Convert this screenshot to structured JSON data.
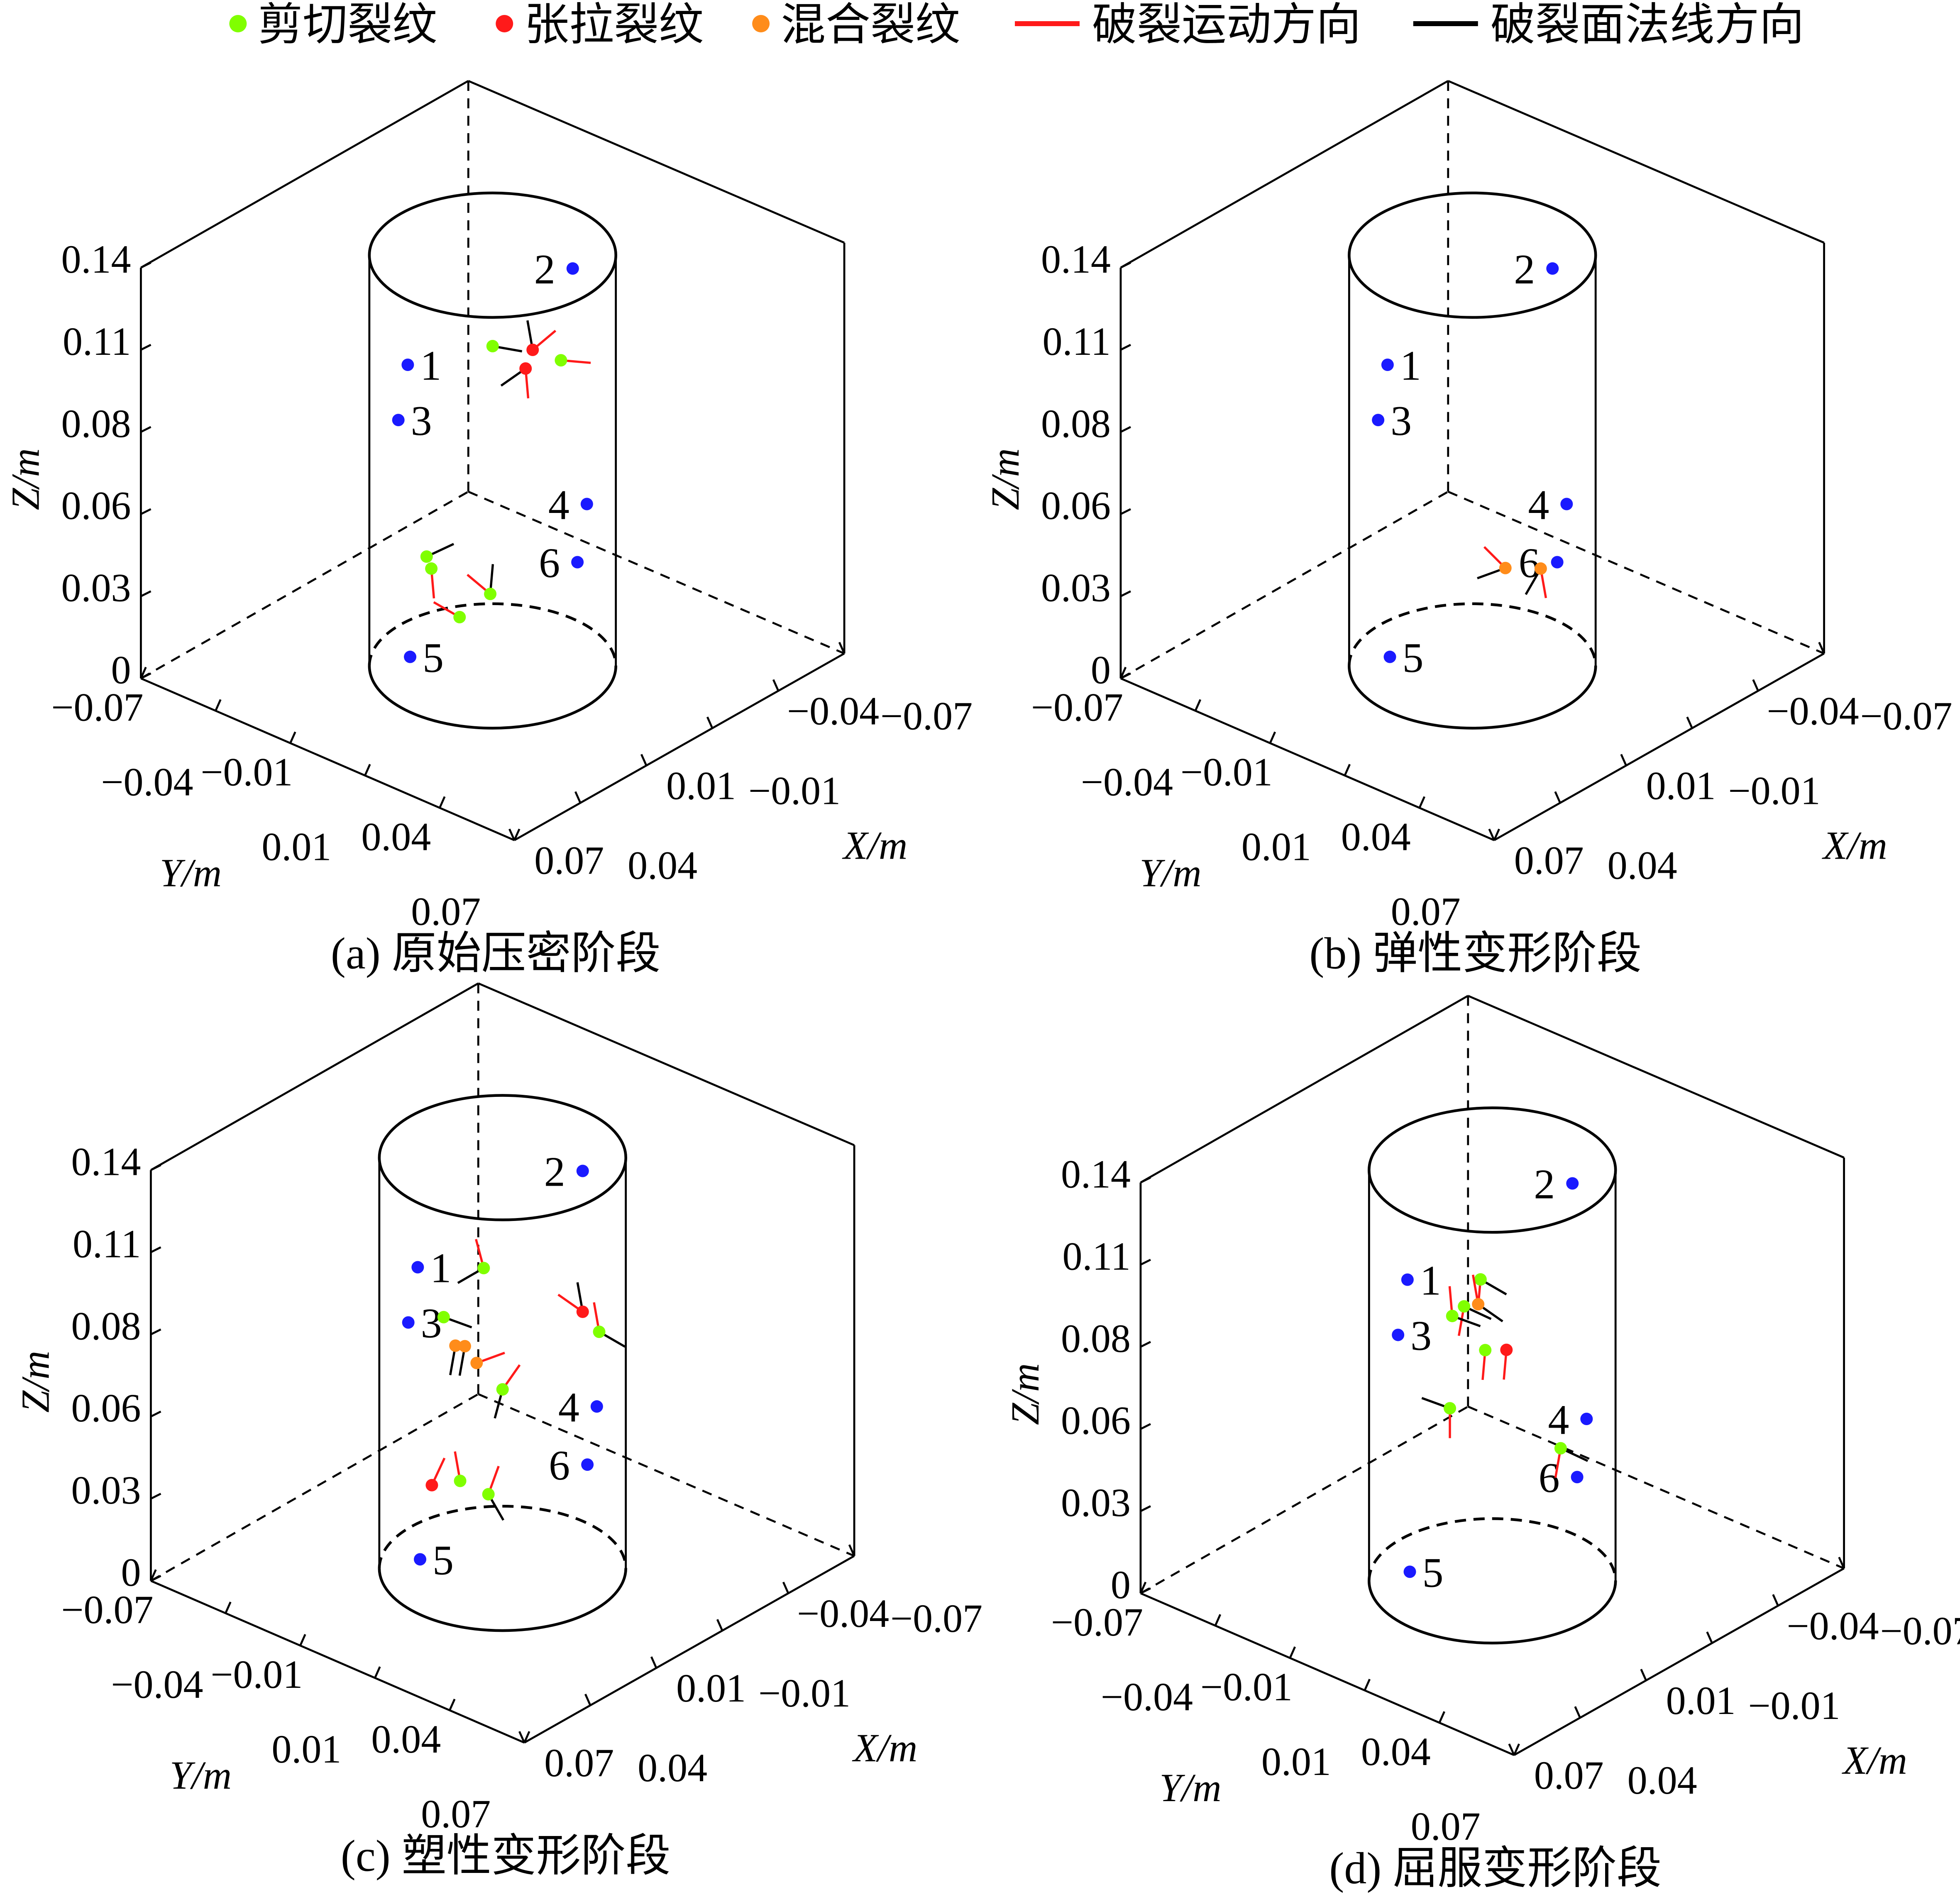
{
  "legend": [
    {
      "label": "剪切裂纹",
      "kind": "dot",
      "color": "#80ff00"
    },
    {
      "label": "张拉裂纹",
      "kind": "dot",
      "color": "#ff1a1a"
    },
    {
      "label": "混合裂纹",
      "kind": "dot",
      "color": "#ff8c1a"
    },
    {
      "label": "破裂运动方向",
      "kind": "line",
      "color": "#ff1a1a"
    },
    {
      "label": "破裂面法线方向",
      "kind": "line",
      "color": "#000000"
    }
  ],
  "colors": {
    "shear": "#80ff00",
    "tensile": "#ff1a1a",
    "mixed": "#ff8c1a",
    "sensor": "#1a1aff",
    "motion": "#ff1a1a",
    "normal": "#000000"
  },
  "chart_data": [
    {
      "type": "scatter3d",
      "caption": "(a)  原始压密阶段",
      "xlabel": "X/m",
      "ylabel": "Y/m",
      "zlabel": "Z/m",
      "xticks": [
        "0.07",
        "0.04",
        "0.01",
        "−0.01",
        "−0.04",
        "−0.07"
      ],
      "yticks": [
        "−0.07",
        "−0.04",
        "−0.01",
        "0.01",
        "0.04",
        "0.07"
      ],
      "zticks": [
        "0",
        "0.03",
        "0.06",
        "0.08",
        "0.11",
        "0.14"
      ],
      "xlim": [
        -0.07,
        0.07
      ],
      "ylim": [
        -0.07,
        0.07
      ],
      "zlim": [
        0,
        0.14
      ],
      "sensors": [
        {
          "label": "1",
          "x": 0.036,
          "y": 0,
          "z": 0.119
        },
        {
          "label": "2",
          "x": -0.034,
          "y": 0,
          "z": 0.12
        },
        {
          "label": "3",
          "x": 0.04,
          "y": 0,
          "z": 0.102
        },
        {
          "label": "4",
          "x": -0.04,
          "y": 0,
          "z": 0.037
        },
        {
          "label": "5",
          "x": 0.035,
          "y": 0,
          "z": 0.019
        },
        {
          "label": "6",
          "x": -0.036,
          "y": 0,
          "z": 0.019
        }
      ],
      "cracks": [
        {
          "type": "shear",
          "x": 0.0,
          "y": 0,
          "z": 0.109,
          "motion_deg": null,
          "normal_deg": -10
        },
        {
          "type": "tensile",
          "x": -0.017,
          "y": 0,
          "z": 0.1,
          "motion_deg": 40,
          "normal_deg": 100
        },
        {
          "type": "tensile",
          "x": -0.014,
          "y": 0,
          "z": 0.095,
          "motion_deg": -85,
          "normal_deg": 215
        },
        {
          "type": "shear",
          "x": -0.029,
          "y": 0,
          "z": 0.091,
          "motion_deg": -5,
          "normal_deg": null
        },
        {
          "type": "shear",
          "x": 0.028,
          "y": 0,
          "z": 0.05,
          "motion_deg": null,
          "normal_deg": 25
        },
        {
          "type": "shear",
          "x": 0.026,
          "y": 0,
          "z": 0.045,
          "motion_deg": -85,
          "normal_deg": null
        },
        {
          "type": "shear",
          "x": 0.014,
          "y": 0,
          "z": 0.023,
          "motion_deg": 150,
          "normal_deg": null
        },
        {
          "type": "shear",
          "x": 0.001,
          "y": 0,
          "z": 0.025,
          "motion_deg": 140,
          "normal_deg": 85
        }
      ]
    },
    {
      "type": "scatter3d",
      "caption": "(b)  弹性变形阶段",
      "xlabel": "X/m",
      "ylabel": "Y/m",
      "zlabel": "Z/m",
      "xticks": [
        "0.07",
        "0.04",
        "0.01",
        "−0.01",
        "−0.04",
        "−0.07"
      ],
      "yticks": [
        "−0.07",
        "−0.04",
        "−0.01",
        "0.01",
        "0.04",
        "0.07"
      ],
      "zticks": [
        "0",
        "0.03",
        "0.06",
        "0.08",
        "0.11",
        "0.14"
      ],
      "xlim": [
        -0.07,
        0.07
      ],
      "ylim": [
        -0.07,
        0.07
      ],
      "zlim": [
        0,
        0.14
      ],
      "sensors": [
        {
          "label": "1",
          "x": 0.036,
          "y": 0,
          "z": 0.119
        },
        {
          "label": "2",
          "x": -0.034,
          "y": 0,
          "z": 0.12
        },
        {
          "label": "3",
          "x": 0.04,
          "y": 0,
          "z": 0.102
        },
        {
          "label": "4",
          "x": -0.04,
          "y": 0,
          "z": 0.037
        },
        {
          "label": "5",
          "x": 0.035,
          "y": 0,
          "z": 0.019
        },
        {
          "label": "6",
          "x": -0.036,
          "y": 0,
          "z": 0.019
        }
      ],
      "cracks": [
        {
          "type": "mixed",
          "x": -0.014,
          "y": 0,
          "z": 0.027,
          "motion_deg": 135,
          "normal_deg": 200
        },
        {
          "type": "mixed",
          "x": -0.029,
          "y": 0,
          "z": 0.02,
          "motion_deg": -80,
          "normal_deg": 240
        }
      ]
    },
    {
      "type": "scatter3d",
      "caption": "(c)  塑性变形阶段",
      "xlabel": "X/m",
      "ylabel": "Y/m",
      "zlabel": "Z/m",
      "xticks": [
        "0.07",
        "0.04",
        "0.01",
        "−0.01",
        "−0.04",
        "−0.07"
      ],
      "yticks": [
        "−0.07",
        "−0.04",
        "−0.01",
        "0.01",
        "0.04",
        "0.07"
      ],
      "zticks": [
        "0",
        "0.03",
        "0.06",
        "0.08",
        "0.11",
        "0.14"
      ],
      "xlim": [
        -0.07,
        0.07
      ],
      "ylim": [
        -0.07,
        0.07
      ],
      "zlim": [
        0,
        0.14
      ],
      "sensors": [
        {
          "label": "1",
          "x": 0.036,
          "y": 0,
          "z": 0.119
        },
        {
          "label": "2",
          "x": -0.034,
          "y": 0,
          "z": 0.12
        },
        {
          "label": "3",
          "x": 0.04,
          "y": 0,
          "z": 0.102
        },
        {
          "label": "4",
          "x": -0.04,
          "y": 0,
          "z": 0.037
        },
        {
          "label": "5",
          "x": 0.035,
          "y": 0,
          "z": 0.019
        },
        {
          "label": "6",
          "x": -0.036,
          "y": 0,
          "z": 0.019
        }
      ],
      "cracks": [
        {
          "type": "shear",
          "x": 0.008,
          "y": 0,
          "z": 0.106,
          "motion_deg": 105,
          "normal_deg": 210
        },
        {
          "type": "tensile",
          "x": -0.034,
          "y": 0,
          "z": 0.072,
          "motion_deg": 145,
          "normal_deg": 100
        },
        {
          "type": "shear",
          "x": -0.041,
          "y": 0,
          "z": 0.062,
          "motion_deg": 100,
          "normal_deg": -30
        },
        {
          "type": "shear",
          "x": 0.025,
          "y": 0,
          "z": 0.097,
          "motion_deg": null,
          "normal_deg": -20
        },
        {
          "type": "mixed",
          "x": 0.02,
          "y": 0,
          "z": 0.085,
          "motion_deg": null,
          "normal_deg": -100
        },
        {
          "type": "mixed",
          "x": 0.016,
          "y": 0,
          "z": 0.083,
          "motion_deg": null,
          "normal_deg": -100
        },
        {
          "type": "mixed",
          "x": 0.011,
          "y": 0,
          "z": 0.075,
          "motion_deg": 20,
          "normal_deg": null
        },
        {
          "type": "shear",
          "x": 0.0,
          "y": 0,
          "z": 0.061,
          "motion_deg": 55,
          "normal_deg": -105
        },
        {
          "type": "tensile",
          "x": 0.03,
          "y": 0,
          "z": 0.042,
          "motion_deg": 65,
          "normal_deg": null
        },
        {
          "type": "shear",
          "x": 0.018,
          "y": 0,
          "z": 0.038,
          "motion_deg": 100,
          "normal_deg": null
        },
        {
          "type": "shear",
          "x": 0.006,
          "y": 0,
          "z": 0.028,
          "motion_deg": 70,
          "normal_deg": -60
        }
      ]
    },
    {
      "type": "scatter3d",
      "caption": "(d)  屈服变形阶段",
      "xlabel": "X/m",
      "ylabel": "Y/m",
      "zlabel": "Z/m",
      "xticks": [
        "0.07",
        "0.04",
        "0.01",
        "−0.01",
        "−0.04",
        "−0.07"
      ],
      "yticks": [
        "−0.07",
        "−0.04",
        "−0.01",
        "0.01",
        "0.04",
        "0.07"
      ],
      "zticks": [
        "0",
        "0.03",
        "0.06",
        "0.08",
        "0.11",
        "0.14"
      ],
      "xlim": [
        -0.07,
        0.07
      ],
      "ylim": [
        -0.07,
        0.07
      ],
      "zlim": [
        0,
        0.14
      ],
      "sensors": [
        {
          "label": "1",
          "x": 0.036,
          "y": 0,
          "z": 0.119
        },
        {
          "label": "2",
          "x": -0.034,
          "y": 0,
          "z": 0.12
        },
        {
          "label": "3",
          "x": 0.04,
          "y": 0,
          "z": 0.102
        },
        {
          "label": "4",
          "x": -0.04,
          "y": 0,
          "z": 0.037
        },
        {
          "label": "5",
          "x": 0.035,
          "y": 0,
          "z": 0.019
        },
        {
          "label": "6",
          "x": -0.036,
          "y": 0,
          "z": 0.019
        }
      ],
      "cracks": [
        {
          "type": "shear",
          "x": 0.005,
          "y": 0,
          "z": 0.105,
          "motion_deg": -95,
          "normal_deg": -30
        },
        {
          "type": "shear",
          "x": 0.012,
          "y": 0,
          "z": 0.099,
          "motion_deg": -100,
          "normal_deg": -25
        },
        {
          "type": "shear",
          "x": 0.017,
          "y": 0,
          "z": 0.098,
          "motion_deg": 95,
          "normal_deg": -20
        },
        {
          "type": "mixed",
          "x": 0.006,
          "y": 0,
          "z": 0.097,
          "motion_deg": 100,
          "normal_deg": -35
        },
        {
          "type": "shear",
          "x": 0.003,
          "y": 0,
          "z": 0.08,
          "motion_deg": -95,
          "normal_deg": null
        },
        {
          "type": "tensile",
          "x": -0.006,
          "y": 0,
          "z": 0.076,
          "motion_deg": -95,
          "normal_deg": null
        },
        {
          "type": "shear",
          "x": 0.018,
          "y": 0,
          "z": 0.067,
          "motion_deg": -90,
          "normal_deg": 160
        },
        {
          "type": "shear",
          "x": -0.029,
          "y": 0,
          "z": 0.032,
          "motion_deg": -100,
          "normal_deg": -25
        }
      ]
    }
  ]
}
